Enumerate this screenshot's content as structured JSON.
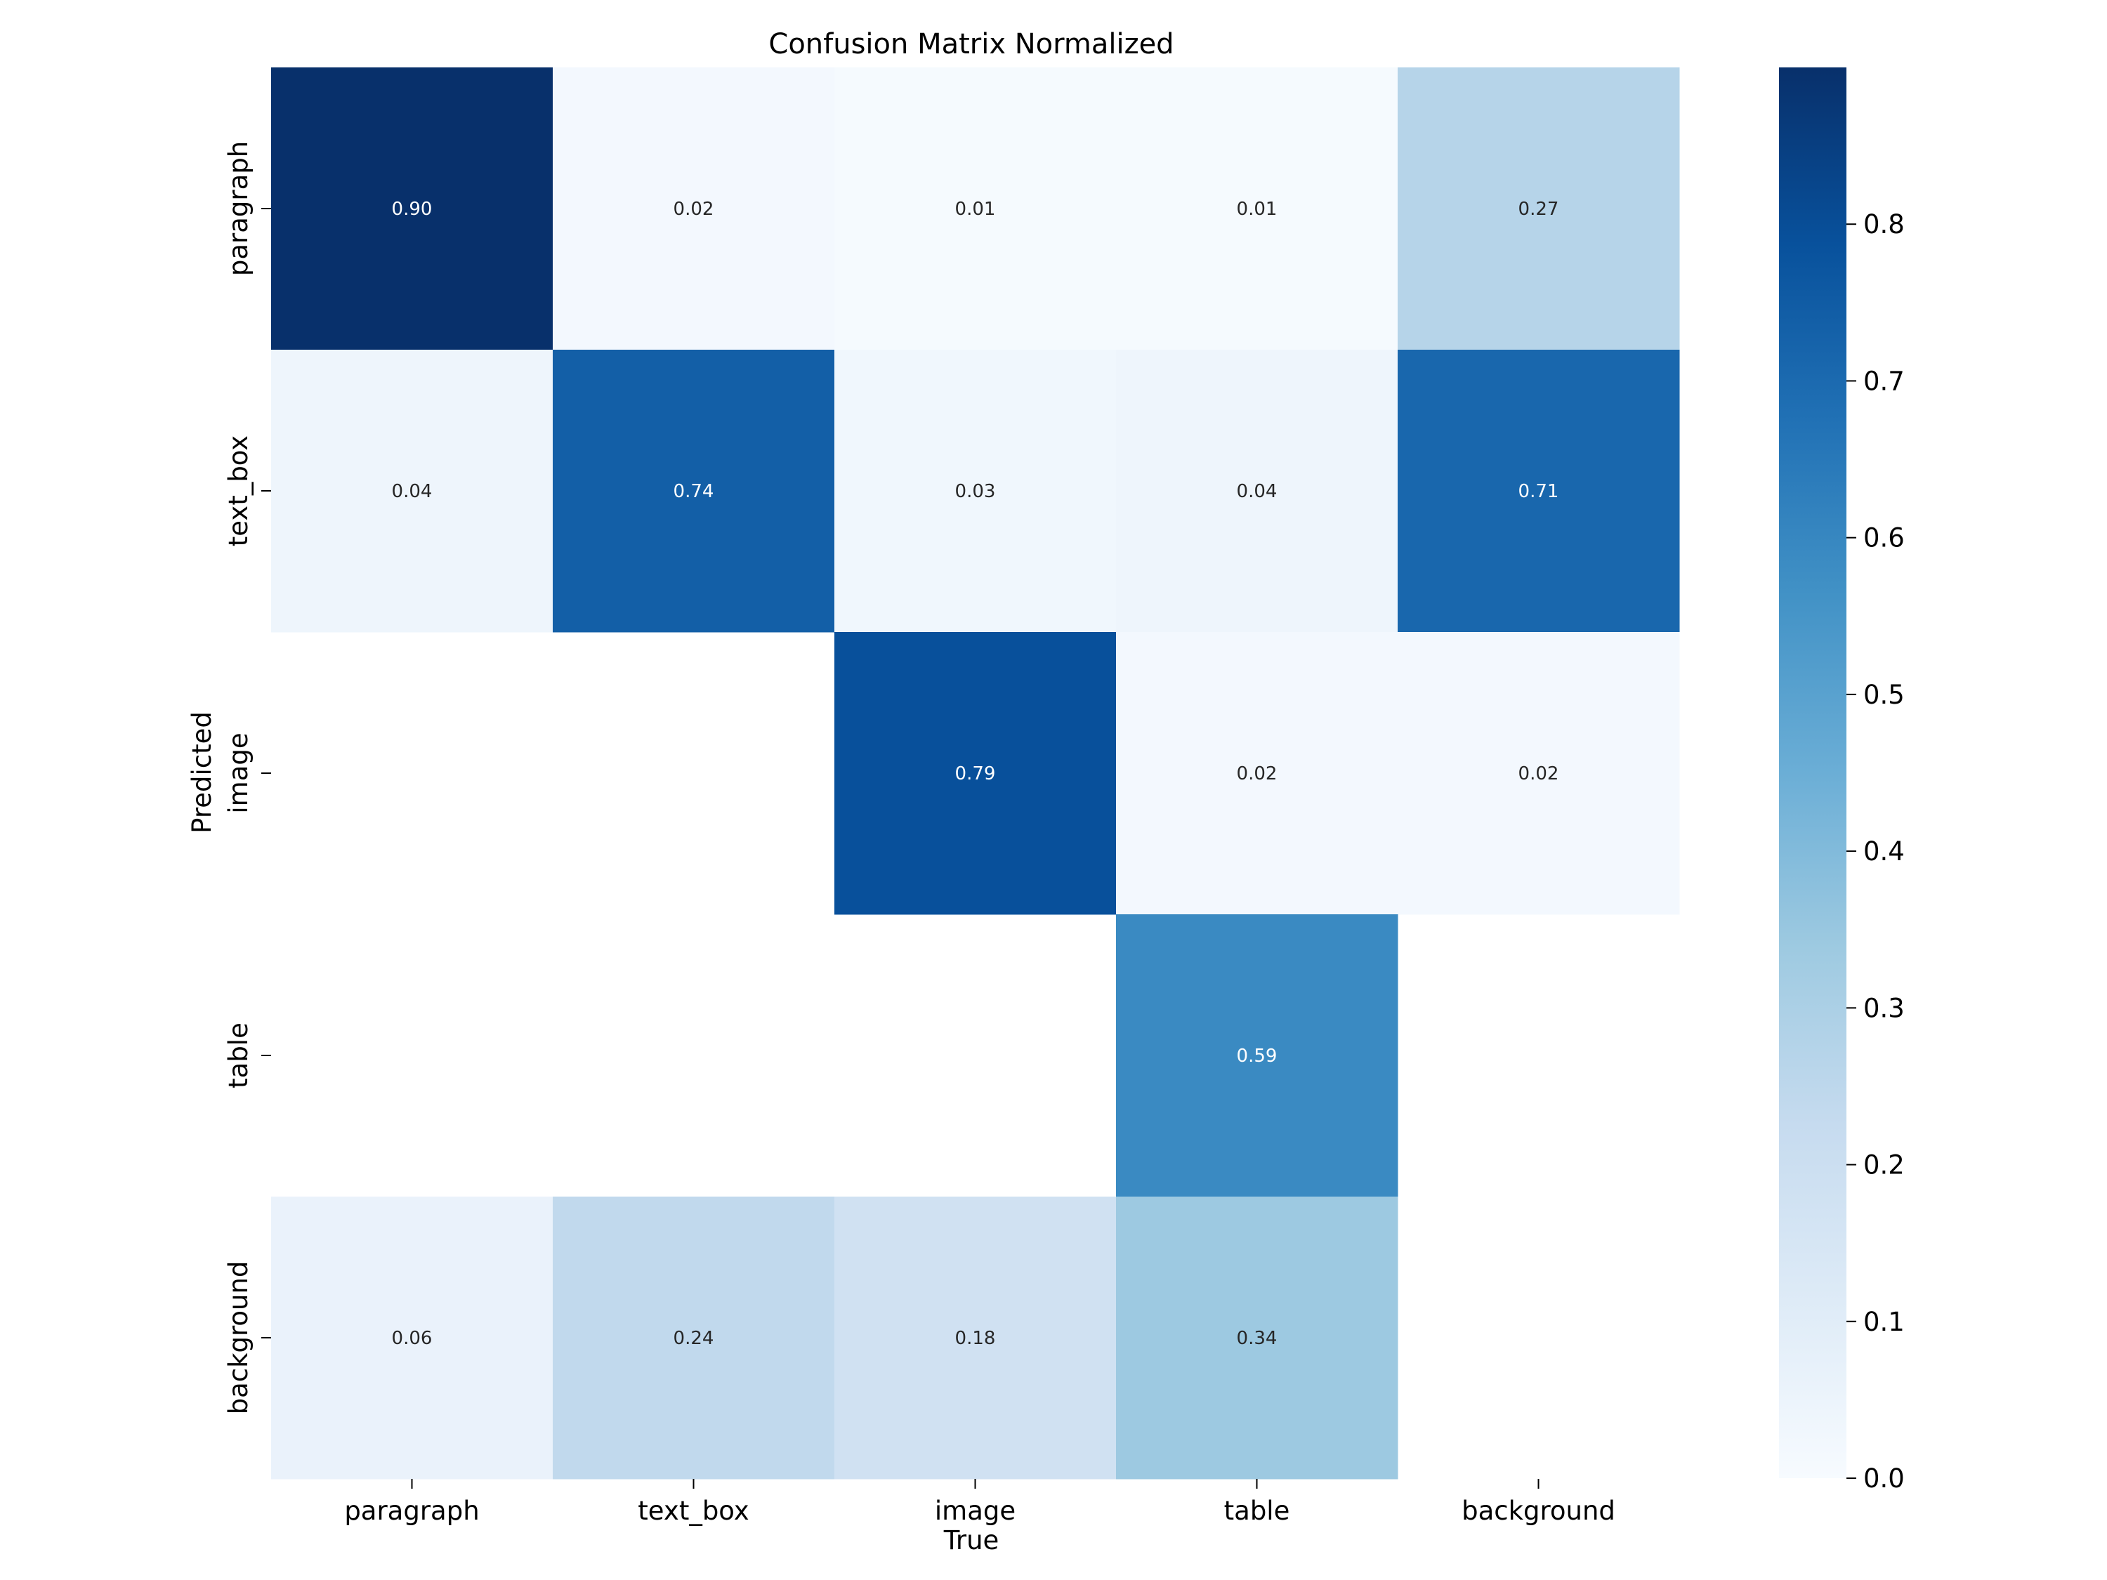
{
  "chart_data": {
    "type": "heatmap",
    "title": "Confusion Matrix Normalized",
    "xlabel": "True",
    "ylabel": "Predicted",
    "x_categories": [
      "paragraph",
      "text_box",
      "image",
      "table",
      "background"
    ],
    "y_categories": [
      "paragraph",
      "text_box",
      "image",
      "table",
      "background"
    ],
    "values": [
      [
        0.9,
        0.02,
        0.01,
        0.01,
        0.27
      ],
      [
        0.04,
        0.74,
        0.03,
        0.04,
        0.71
      ],
      [
        null,
        null,
        0.79,
        0.02,
        0.02
      ],
      [
        null,
        null,
        null,
        0.59,
        null
      ],
      [
        0.06,
        0.24,
        0.18,
        0.34,
        null
      ]
    ],
    "value_format": "0.00",
    "colormap": "Blues",
    "colorbar": {
      "range": [
        0.0,
        0.9
      ],
      "ticks": [
        "0.0",
        "0.1",
        "0.2",
        "0.3",
        "0.4",
        "0.5",
        "0.6",
        "0.7",
        "0.8"
      ]
    },
    "grid": false
  }
}
